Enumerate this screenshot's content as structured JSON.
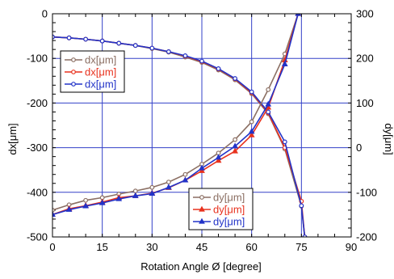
{
  "chart_data": {
    "type": "line",
    "xlabel": "Rotation Angle Ø [degree]",
    "ylabel_left": "dx[μm]",
    "ylabel_right": "dy[μm]",
    "xlim": [
      0,
      90
    ],
    "ylim_left": [
      -500,
      0
    ],
    "ylim_right": [
      -200,
      300
    ],
    "x_ticks": [
      0,
      15,
      30,
      45,
      60,
      75,
      90
    ],
    "y_ticks_left": [
      0,
      -100,
      -200,
      -300,
      -400,
      -500
    ],
    "y_ticks_right": [
      300,
      200,
      100,
      0,
      -100,
      -200
    ],
    "grid": true,
    "x_minor_step": 5,
    "series": [
      {
        "name": "dx[μm]",
        "axis": "left",
        "color": "#8B6F63",
        "marker": "circle",
        "legend_group": 0,
        "x": [
          0,
          5,
          10,
          15,
          20,
          25,
          30,
          35,
          40,
          45,
          50,
          55,
          60,
          65,
          70,
          75,
          76
        ],
        "y": [
          -52,
          -54,
          -57,
          -61,
          -66,
          -71,
          -78,
          -86,
          -97,
          -109,
          -126,
          -148,
          -179,
          -224,
          -303,
          -431,
          -500
        ]
      },
      {
        "name": "dx[μm]",
        "axis": "left",
        "color": "#E8321E",
        "marker": "circle",
        "legend_group": 0,
        "x": [
          0,
          5,
          10,
          15,
          20,
          25,
          30,
          35,
          40,
          45,
          50,
          55,
          60,
          65,
          70,
          75,
          76
        ],
        "y": [
          -52,
          -54,
          -57,
          -61,
          -66,
          -71,
          -77,
          -85,
          -95,
          -107,
          -124,
          -146,
          -177,
          -222,
          -300,
          -420,
          -500
        ]
      },
      {
        "name": "dx[μm]",
        "axis": "left",
        "color": "#2233C8",
        "marker": "circle",
        "legend_group": 0,
        "x": [
          0,
          5,
          10,
          15,
          20,
          25,
          30,
          35,
          40,
          45,
          50,
          55,
          60,
          65,
          70,
          75,
          76
        ],
        "y": [
          -52,
          -54,
          -57,
          -61,
          -66,
          -71,
          -77,
          -85,
          -94,
          -106,
          -123,
          -145,
          -175,
          -220,
          -287,
          -430,
          -500
        ]
      },
      {
        "name": "dy[μm]",
        "axis": "right",
        "color": "#8B6F63",
        "marker": "circle",
        "legend_group": 1,
        "x": [
          0,
          5,
          10,
          15,
          20,
          25,
          30,
          35,
          40,
          45,
          50,
          55,
          60,
          65,
          70,
          74
        ],
        "y": [
          -140,
          -128,
          -118,
          -112,
          -104,
          -97,
          -89,
          -77,
          -60,
          -37,
          -12,
          18,
          58,
          130,
          210,
          300
        ]
      },
      {
        "name": "dy[μm]",
        "axis": "right",
        "color": "#E8321E",
        "marker": "triangle",
        "legend_group": 1,
        "x": [
          0,
          5,
          10,
          15,
          20,
          25,
          30,
          35,
          40,
          45,
          50,
          55,
          60,
          65,
          70,
          74
        ],
        "y": [
          -150,
          -137,
          -130,
          -122,
          -112,
          -108,
          -102,
          -90,
          -73,
          -52,
          -29,
          -8,
          28,
          90,
          196,
          300
        ]
      },
      {
        "name": "dy[μm]",
        "axis": "right",
        "color": "#2233C8",
        "marker": "triangle",
        "legend_group": 1,
        "x": [
          0,
          5,
          10,
          15,
          20,
          25,
          30,
          35,
          40,
          45,
          50,
          55,
          60,
          65,
          70,
          74
        ],
        "y": [
          -150,
          -139,
          -131,
          -124,
          -115,
          -108,
          -103,
          -89,
          -73,
          -46,
          -22,
          3,
          36,
          97,
          187,
          300
        ]
      }
    ],
    "legends": [
      {
        "placement": "upper-left",
        "entries": [
          0,
          1,
          2
        ]
      },
      {
        "placement": "lower-right",
        "entries": [
          3,
          4,
          5
        ]
      }
    ]
  }
}
